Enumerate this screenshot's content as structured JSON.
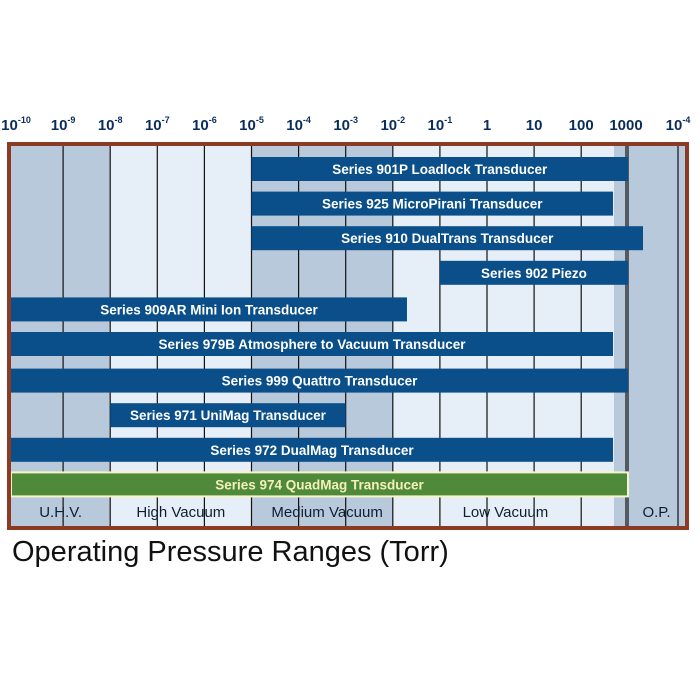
{
  "chart_data": {
    "type": "bar",
    "title": "Operating Pressure Ranges (Torr)",
    "axis": {
      "scale": "log",
      "ticks": [
        {
          "base": "10",
          "exp": "-10"
        },
        {
          "base": "10",
          "exp": "-9"
        },
        {
          "base": "10",
          "exp": "-8"
        },
        {
          "base": "10",
          "exp": "-7"
        },
        {
          "base": "10",
          "exp": "-6"
        },
        {
          "base": "10",
          "exp": "-5"
        },
        {
          "base": "10",
          "exp": "-4"
        },
        {
          "base": "10",
          "exp": "-3"
        },
        {
          "base": "10",
          "exp": "-2"
        },
        {
          "base": "10",
          "exp": "-1"
        },
        {
          "base": "1",
          "exp": ""
        },
        {
          "base": "10",
          "exp": ""
        },
        {
          "base": "100",
          "exp": ""
        },
        {
          "base": "1000",
          "exp": ""
        },
        {
          "base": "10",
          "exp": "-4"
        }
      ]
    },
    "series": [
      {
        "name": "Series 901P Loadlock Transducer",
        "range": [
          "1e-5",
          "2000"
        ]
      },
      {
        "name": "Series 925 MicroPirani Transducer",
        "range": [
          "1e-5",
          "1000"
        ]
      },
      {
        "name": "Series 910 DualTrans Transducer",
        "range": [
          "1e-5",
          "2000"
        ]
      },
      {
        "name": "Series 902 Piezo",
        "range": [
          "0.1",
          "2000"
        ]
      },
      {
        "name": "Series 909AR Mini Ion Transducer",
        "range": [
          "1e-10",
          "0.02"
        ]
      },
      {
        "name": "Series 979B Atmosphere to Vacuum Transducer",
        "range": [
          "1e-10",
          "1000"
        ]
      },
      {
        "name": "Series 999 Quattro Transducer",
        "range": [
          "1e-10",
          "2000"
        ]
      },
      {
        "name": "Series 971 UniMag Transducer",
        "range": [
          "1e-8",
          "1e-3"
        ]
      },
      {
        "name": "Series 972 DualMag Transducer",
        "range": [
          "1e-10",
          "1000"
        ]
      },
      {
        "name": "Series 974 QuadMag Transducer",
        "range": [
          "1e-10",
          "2000"
        ],
        "highlight": true
      }
    ],
    "regions": [
      {
        "label": "U.H.V."
      },
      {
        "label": "High Vacuum"
      },
      {
        "label": "Medium Vacuum"
      },
      {
        "label": "Low Vacuum"
      },
      {
        "label": "O.P."
      }
    ],
    "colors": {
      "frame": "#8b3a24",
      "bar": "#0a4f8a",
      "highlight_bar": "#4f8a3a",
      "highlight_border": "#f6f4c8",
      "band_dark": "#b9c9dc",
      "band_light": "#e6eff8",
      "grid": "#111111"
    }
  }
}
